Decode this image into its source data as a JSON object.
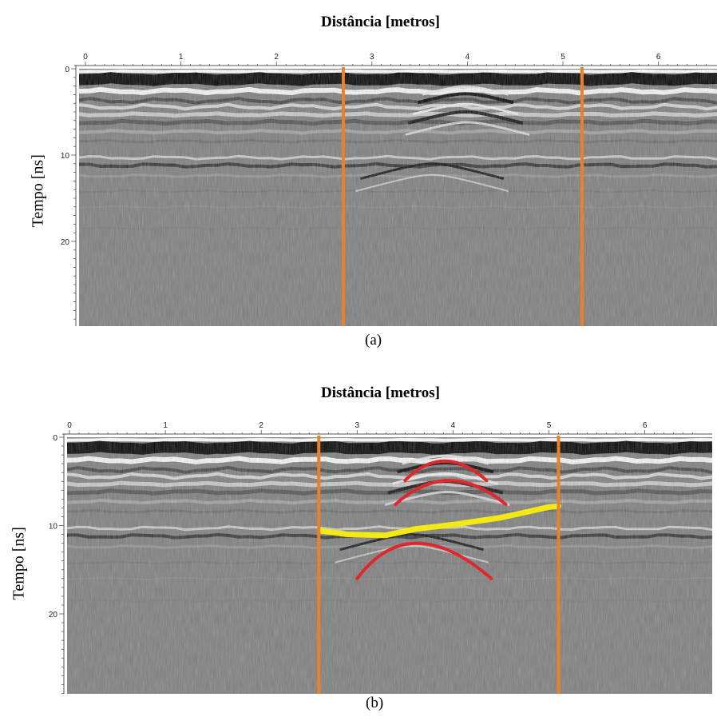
{
  "chart_data": [
    {
      "type": "heatmap",
      "title": "Distância [metros]",
      "xlabel": "Distância [metros]",
      "ylabel": "Tempo [ns]",
      "caption": "(a)",
      "x_ticks": [
        "0",
        "1",
        "2",
        "3",
        "4",
        "5",
        "6"
      ],
      "y_ticks": [
        "0",
        "10",
        "20"
      ],
      "xlim": [
        0,
        6.5
      ],
      "ylim": [
        0,
        30
      ],
      "vertical_markers_m": [
        2.7,
        5.2
      ],
      "marker_color": "#e8822a",
      "hyperbolas": [],
      "interface_line": null
    },
    {
      "type": "heatmap",
      "title": "Distância [metros]",
      "xlabel": "Distância [metros]",
      "ylabel": "Tempo [ns]",
      "caption": "(b)",
      "x_ticks": [
        "0",
        "1",
        "2",
        "3",
        "4",
        "5",
        "6"
      ],
      "y_ticks": [
        "0",
        "10",
        "20"
      ],
      "xlim": [
        0,
        6.5
      ],
      "ylim": [
        0,
        30
      ],
      "vertical_markers_m": [
        2.6,
        5.1
      ],
      "marker_color": "#e8822a",
      "hyperbola_color": "#e0282c",
      "interface_color": "#f2ea12",
      "hyperbolas": [
        {
          "x_start": 3.5,
          "apex_x": 3.9,
          "apex_t": 2.7,
          "x_end": 4.35,
          "t_end": 4.9
        },
        {
          "x_start": 3.4,
          "apex_x": 3.95,
          "apex_t": 4.9,
          "x_end": 4.55,
          "t_end": 7.6
        },
        {
          "x_start": 3.0,
          "apex_x": 3.55,
          "apex_t": 12.0,
          "x_end": 4.4,
          "t_end": 16.0
        }
      ],
      "interface_line": [
        {
          "x": 2.62,
          "t": 10.6
        },
        {
          "x": 2.9,
          "t": 11.0
        },
        {
          "x": 3.3,
          "t": 11.1
        },
        {
          "x": 3.6,
          "t": 10.4
        },
        {
          "x": 4.0,
          "t": 9.9
        },
        {
          "x": 4.5,
          "t": 9.1
        },
        {
          "x": 5.0,
          "t": 7.9
        },
        {
          "x": 5.1,
          "t": 7.8
        }
      ]
    }
  ]
}
